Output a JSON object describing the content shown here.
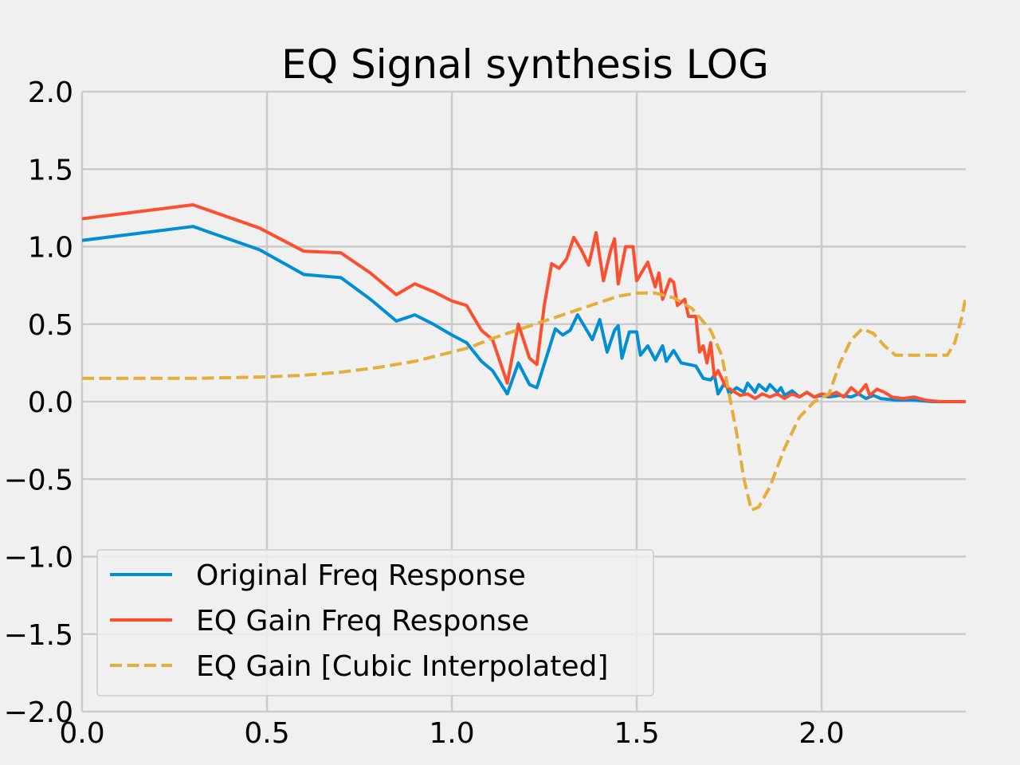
{
  "chart_data": {
    "type": "line",
    "title": "EQ Signal synthesis LOG",
    "xlabel": "",
    "ylabel": "",
    "xlim": [
      0.0,
      2.39
    ],
    "ylim": [
      -2.0,
      2.0
    ],
    "grid": true,
    "legend_position": "lower-left",
    "x_ticks": [
      "0.0",
      "0.5",
      "1.0",
      "1.5",
      "2.0"
    ],
    "y_ticks": [
      "−2.0",
      "−1.5",
      "−1.0",
      "−0.5",
      "0.0",
      "0.5",
      "1.0",
      "1.5",
      "2.0"
    ],
    "colors": {
      "background": "#f0f0f0",
      "grid": "#cbcbcb",
      "original": "#008fd5",
      "eq_gain": "#fc4f30",
      "eq_cubic": "#e5ae38"
    },
    "series": [
      {
        "name": "Original Freq Response",
        "style": "solid",
        "color": "#008fd5",
        "points": [
          [
            0.0,
            1.04
          ],
          [
            0.3,
            1.13
          ],
          [
            0.48,
            0.98
          ],
          [
            0.6,
            0.82
          ],
          [
            0.7,
            0.8
          ],
          [
            0.78,
            0.66
          ],
          [
            0.85,
            0.52
          ],
          [
            0.9,
            0.56
          ],
          [
            0.95,
            0.5
          ],
          [
            1.0,
            0.43
          ],
          [
            1.04,
            0.38
          ],
          [
            1.08,
            0.26
          ],
          [
            1.11,
            0.2
          ],
          [
            1.15,
            0.05
          ],
          [
            1.18,
            0.25
          ],
          [
            1.21,
            0.11
          ],
          [
            1.23,
            0.09
          ],
          [
            1.28,
            0.47
          ],
          [
            1.3,
            0.43
          ],
          [
            1.32,
            0.46
          ],
          [
            1.34,
            0.56
          ],
          [
            1.36,
            0.48
          ],
          [
            1.38,
            0.4
          ],
          [
            1.4,
            0.53
          ],
          [
            1.42,
            0.32
          ],
          [
            1.44,
            0.46
          ],
          [
            1.45,
            0.49
          ],
          [
            1.46,
            0.28
          ],
          [
            1.48,
            0.45
          ],
          [
            1.5,
            0.45
          ],
          [
            1.51,
            0.3
          ],
          [
            1.53,
            0.36
          ],
          [
            1.55,
            0.27
          ],
          [
            1.57,
            0.36
          ],
          [
            1.58,
            0.26
          ],
          [
            1.6,
            0.33
          ],
          [
            1.62,
            0.25
          ],
          [
            1.64,
            0.24
          ],
          [
            1.66,
            0.23
          ],
          [
            1.68,
            0.15
          ],
          [
            1.7,
            0.14
          ],
          [
            1.71,
            0.17
          ],
          [
            1.72,
            0.05
          ],
          [
            1.74,
            0.13
          ],
          [
            1.75,
            0.05
          ],
          [
            1.77,
            0.09
          ],
          [
            1.79,
            0.06
          ],
          [
            1.8,
            0.12
          ],
          [
            1.82,
            0.06
          ],
          [
            1.83,
            0.11
          ],
          [
            1.85,
            0.07
          ],
          [
            1.86,
            0.11
          ],
          [
            1.88,
            0.06
          ],
          [
            1.89,
            0.09
          ],
          [
            1.9,
            0.04
          ],
          [
            1.92,
            0.07
          ],
          [
            1.94,
            0.03
          ],
          [
            1.96,
            0.06
          ],
          [
            1.98,
            0.03
          ],
          [
            2.0,
            0.04
          ],
          [
            2.02,
            0.03
          ],
          [
            2.05,
            0.04
          ],
          [
            2.08,
            0.03
          ],
          [
            2.1,
            0.05
          ],
          [
            2.12,
            0.02
          ],
          [
            2.14,
            0.04
          ],
          [
            2.16,
            0.02
          ],
          [
            2.2,
            0.01
          ],
          [
            2.25,
            0.01
          ],
          [
            2.3,
            0.0
          ],
          [
            2.39,
            0.0
          ]
        ]
      },
      {
        "name": "EQ Gain Freq Response",
        "style": "solid",
        "color": "#fc4f30",
        "points": [
          [
            0.0,
            1.18
          ],
          [
            0.3,
            1.27
          ],
          [
            0.48,
            1.12
          ],
          [
            0.6,
            0.97
          ],
          [
            0.7,
            0.96
          ],
          [
            0.78,
            0.83
          ],
          [
            0.85,
            0.69
          ],
          [
            0.9,
            0.76
          ],
          [
            0.95,
            0.71
          ],
          [
            1.0,
            0.65
          ],
          [
            1.04,
            0.62
          ],
          [
            1.08,
            0.46
          ],
          [
            1.11,
            0.4
          ],
          [
            1.15,
            0.12
          ],
          [
            1.18,
            0.5
          ],
          [
            1.21,
            0.28
          ],
          [
            1.23,
            0.24
          ],
          [
            1.25,
            0.62
          ],
          [
            1.27,
            0.89
          ],
          [
            1.29,
            0.86
          ],
          [
            1.31,
            0.92
          ],
          [
            1.33,
            1.06
          ],
          [
            1.35,
            0.98
          ],
          [
            1.37,
            0.88
          ],
          [
            1.39,
            1.09
          ],
          [
            1.41,
            0.78
          ],
          [
            1.43,
            0.98
          ],
          [
            1.44,
            1.05
          ],
          [
            1.45,
            0.76
          ],
          [
            1.47,
            1.0
          ],
          [
            1.49,
            1.0
          ],
          [
            1.5,
            0.78
          ],
          [
            1.52,
            0.86
          ],
          [
            1.53,
            0.9
          ],
          [
            1.55,
            0.74
          ],
          [
            1.56,
            0.83
          ],
          [
            1.57,
            0.66
          ],
          [
            1.59,
            0.79
          ],
          [
            1.6,
            0.77
          ],
          [
            1.61,
            0.62
          ],
          [
            1.63,
            0.66
          ],
          [
            1.64,
            0.55
          ],
          [
            1.66,
            0.55
          ],
          [
            1.67,
            0.32
          ],
          [
            1.68,
            0.36
          ],
          [
            1.69,
            0.25
          ],
          [
            1.7,
            0.38
          ],
          [
            1.71,
            0.16
          ],
          [
            1.72,
            0.2
          ],
          [
            1.74,
            0.1
          ],
          [
            1.76,
            0.07
          ],
          [
            1.78,
            0.04
          ],
          [
            1.8,
            0.05
          ],
          [
            1.82,
            0.02
          ],
          [
            1.84,
            0.05
          ],
          [
            1.86,
            0.03
          ],
          [
            1.88,
            0.05
          ],
          [
            1.9,
            0.02
          ],
          [
            1.92,
            0.05
          ],
          [
            1.94,
            0.03
          ],
          [
            1.96,
            0.06
          ],
          [
            1.98,
            0.03
          ],
          [
            2.0,
            0.05
          ],
          [
            2.02,
            0.04
          ],
          [
            2.04,
            0.06
          ],
          [
            2.06,
            0.03
          ],
          [
            2.08,
            0.09
          ],
          [
            2.1,
            0.05
          ],
          [
            2.12,
            0.11
          ],
          [
            2.13,
            0.04
          ],
          [
            2.15,
            0.08
          ],
          [
            2.17,
            0.06
          ],
          [
            2.19,
            0.03
          ],
          [
            2.22,
            0.02
          ],
          [
            2.25,
            0.03
          ],
          [
            2.28,
            0.01
          ],
          [
            2.32,
            0.0
          ],
          [
            2.39,
            0.0
          ]
        ]
      },
      {
        "name": "EQ Gain [Cubic Interpolated]",
        "style": "dashed",
        "color": "#e5ae38",
        "points": [
          [
            0.0,
            0.15
          ],
          [
            0.1,
            0.15
          ],
          [
            0.2,
            0.15
          ],
          [
            0.3,
            0.15
          ],
          [
            0.4,
            0.155
          ],
          [
            0.5,
            0.16
          ],
          [
            0.6,
            0.17
          ],
          [
            0.7,
            0.19
          ],
          [
            0.8,
            0.22
          ],
          [
            0.9,
            0.26
          ],
          [
            1.0,
            0.32
          ],
          [
            1.05,
            0.35
          ],
          [
            1.1,
            0.4
          ],
          [
            1.15,
            0.44
          ],
          [
            1.2,
            0.48
          ],
          [
            1.25,
            0.52
          ],
          [
            1.3,
            0.56
          ],
          [
            1.35,
            0.6
          ],
          [
            1.4,
            0.64
          ],
          [
            1.45,
            0.68
          ],
          [
            1.5,
            0.7
          ],
          [
            1.55,
            0.7
          ],
          [
            1.6,
            0.67
          ],
          [
            1.65,
            0.6
          ],
          [
            1.7,
            0.46
          ],
          [
            1.73,
            0.3
          ],
          [
            1.75,
            0.05
          ],
          [
            1.77,
            -0.2
          ],
          [
            1.79,
            -0.5
          ],
          [
            1.81,
            -0.7
          ],
          [
            1.83,
            -0.68
          ],
          [
            1.86,
            -0.55
          ],
          [
            1.9,
            -0.3
          ],
          [
            1.94,
            -0.1
          ],
          [
            1.98,
            0.0
          ],
          [
            2.02,
            0.05
          ],
          [
            2.05,
            0.25
          ],
          [
            2.08,
            0.4
          ],
          [
            2.11,
            0.47
          ],
          [
            2.14,
            0.44
          ],
          [
            2.17,
            0.36
          ],
          [
            2.2,
            0.3
          ],
          [
            2.25,
            0.3
          ],
          [
            2.3,
            0.3
          ],
          [
            2.34,
            0.3
          ],
          [
            2.36,
            0.38
          ],
          [
            2.38,
            0.55
          ],
          [
            2.39,
            0.68
          ]
        ]
      }
    ]
  }
}
